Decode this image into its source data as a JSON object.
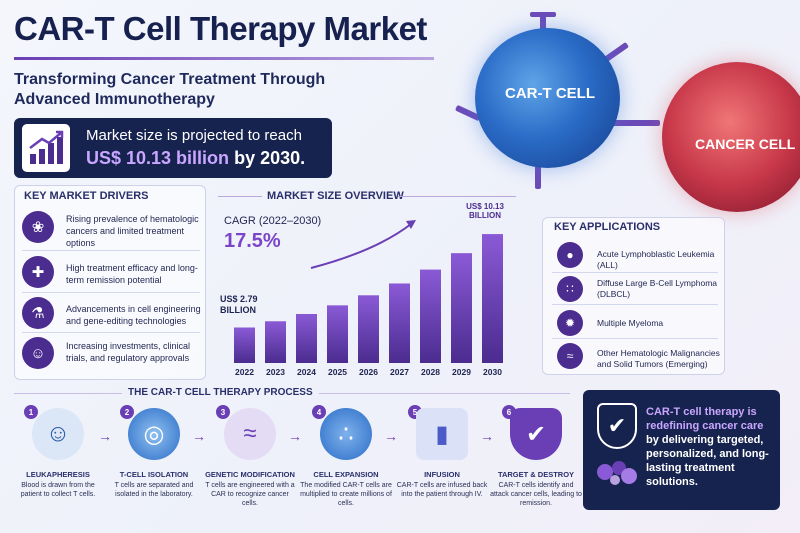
{
  "title": "CAR-T Cell Therapy Market",
  "subtitle": "Transforming Cancer Treatment Through Advanced Immunotherapy",
  "market": {
    "line1": "Market size is projected to reach",
    "value": "US$ 10.13 billion",
    "suffix": "by 2030."
  },
  "cells": {
    "cart_label": "CAR-T CELL",
    "cancer_label": "CANCER CELL"
  },
  "drivers": {
    "title": "KEY MARKET DRIVERS",
    "items": [
      {
        "icon": "ribbon-icon",
        "text": "Rising prevalence of hematologic cancers and limited treatment options"
      },
      {
        "icon": "shield-plus-icon",
        "text": "High treatment efficacy and long-term remission potential"
      },
      {
        "icon": "flask-icon",
        "text": "Advancements in cell engineering and gene-editing technologies"
      },
      {
        "icon": "people-icon",
        "text": "Increasing investments, clinical trials, and regulatory approvals"
      }
    ]
  },
  "chart_data": {
    "type": "bar",
    "title": "MARKET SIZE OVERVIEW",
    "cagr_label": "CAGR (2022–2030)",
    "cagr_value": "17.5%",
    "categories": [
      "2022",
      "2023",
      "2024",
      "2025",
      "2026",
      "2027",
      "2028",
      "2029",
      "2030"
    ],
    "values": [
      2.79,
      3.28,
      3.85,
      4.53,
      5.32,
      6.25,
      7.34,
      8.63,
      10.13
    ],
    "start_label": "US$ 2.79 BILLION",
    "end_label": "US$ 10.13 BILLION",
    "ylim": [
      0,
      11
    ],
    "grid": false,
    "color": "#6a3fb5"
  },
  "applications": {
    "title": "KEY APPLICATIONS",
    "items": [
      {
        "icon": "drop-icon",
        "text": "Acute Lymphoblastic Leukemia (ALL)"
      },
      {
        "icon": "cells-icon",
        "text": "Diffuse Large B-Cell Lymphoma (DLBCL)"
      },
      {
        "icon": "virus-icon",
        "text": "Multiple Myeloma"
      },
      {
        "icon": "dna-icon",
        "text": "Other Hematologic Malignancies and Solid Tumors (Emerging)"
      }
    ]
  },
  "process": {
    "title": "THE CAR-T CELL THERAPY PROCESS",
    "steps": [
      {
        "num": "1",
        "title": "LEUKAPHERESIS",
        "desc": "Blood is drawn from the patient to collect T cells."
      },
      {
        "num": "2",
        "title": "T-CELL ISOLATION",
        "desc": "T cells are separated and isolated in the laboratory."
      },
      {
        "num": "3",
        "title": "GENETIC MODIFICATION",
        "desc": "T cells are engineered with a CAR to recognize cancer cells."
      },
      {
        "num": "4",
        "title": "CELL EXPANSION",
        "desc": "The modified CAR-T cells are multiplied to create millions of cells."
      },
      {
        "num": "5",
        "title": "INFUSION",
        "desc": "CAR-T cells are infused back into the patient through IV."
      },
      {
        "num": "6",
        "title": "TARGET & DESTROY",
        "desc": "CAR-T cells identify and attack cancer cells, leading to remission."
      }
    ]
  },
  "cta": {
    "highlight": "CAR-T cell therapy is redefining cancer care",
    "rest": "by delivering targeted, personalized, and long-lasting treatment solutions."
  },
  "colors": {
    "navy": "#17234f",
    "purple": "#6a3fb5",
    "lavender": "#c9a6ff"
  }
}
